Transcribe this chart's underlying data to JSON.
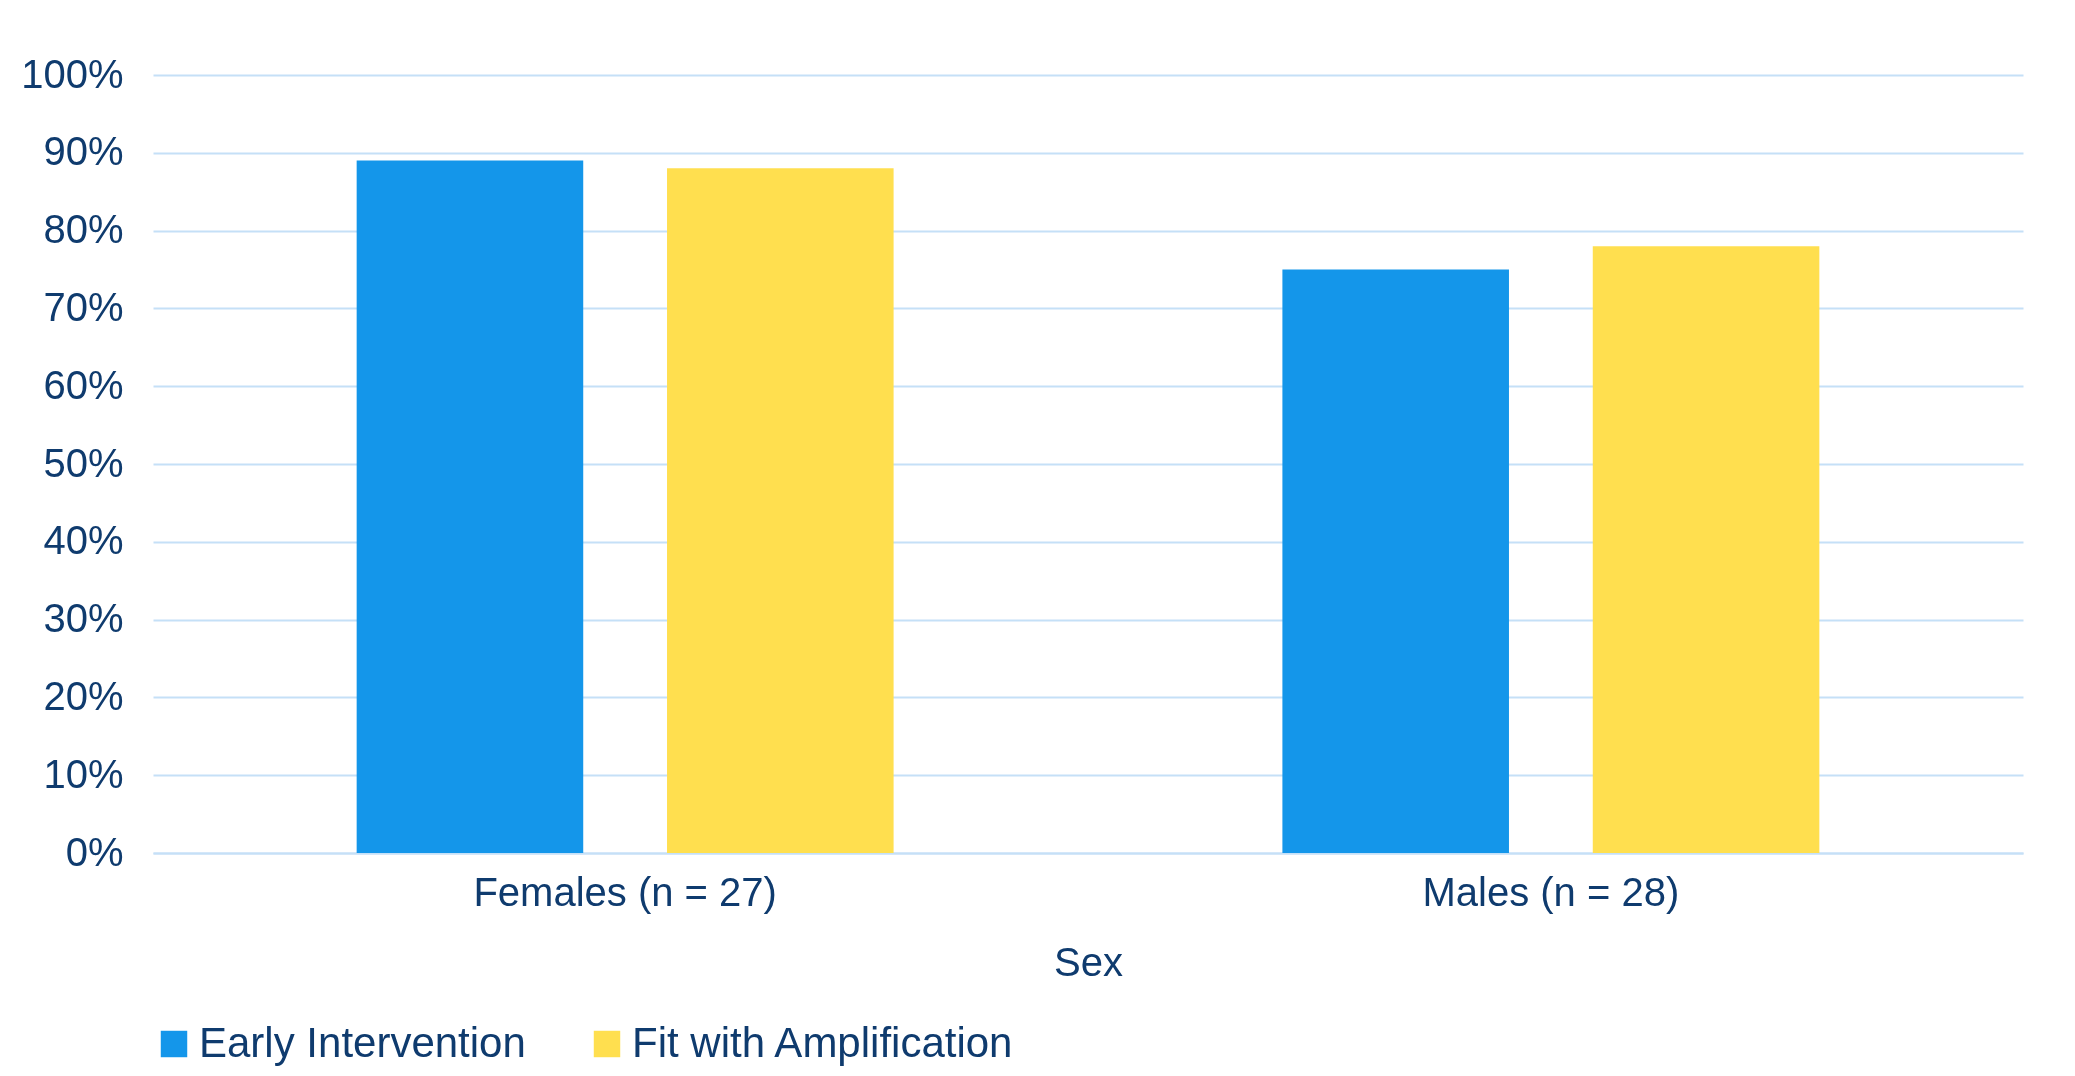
{
  "chart_data": {
    "type": "bar",
    "xlabel": "Sex",
    "categories": [
      "Females (n = 27)",
      "Males (n = 28)"
    ],
    "series": [
      {
        "name": "Early Intervention",
        "color": "#1496ea",
        "values": [
          89,
          75
        ]
      },
      {
        "name": "Fit with Amplification",
        "color": "#ffdf4f",
        "values": [
          88,
          78
        ]
      }
    ],
    "ylim": [
      0,
      100
    ],
    "yticks": [
      {
        "value": 0,
        "label": "0%"
      },
      {
        "value": 10,
        "label": "10%"
      },
      {
        "value": 20,
        "label": "20%"
      },
      {
        "value": 30,
        "label": "30%"
      },
      {
        "value": 40,
        "label": "40%"
      },
      {
        "value": 50,
        "label": "50%"
      },
      {
        "value": 60,
        "label": "60%"
      },
      {
        "value": 70,
        "label": "70%"
      },
      {
        "value": 80,
        "label": "80%"
      },
      {
        "value": 90,
        "label": "90%"
      },
      {
        "value": 100,
        "label": "100%"
      }
    ],
    "grid": "y",
    "legend": "bottom"
  }
}
